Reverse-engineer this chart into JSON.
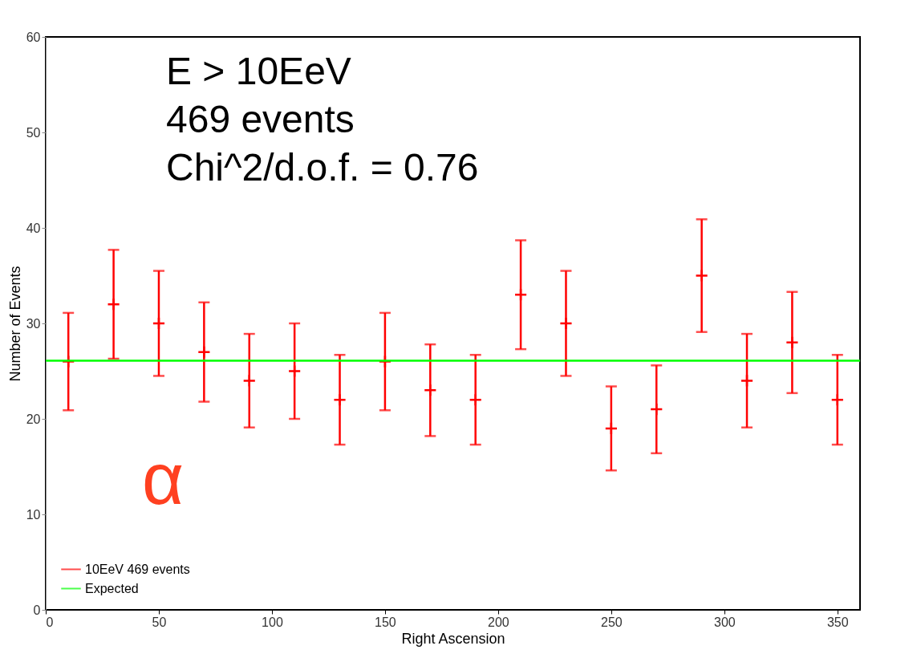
{
  "chart_data": {
    "type": "scatter",
    "xlabel": "Right Ascension",
    "ylabel": "Number of Events",
    "xlim": [
      0,
      360
    ],
    "xticks": [
      0,
      50,
      100,
      150,
      200,
      250,
      300,
      350
    ],
    "ylim": [
      0,
      60
    ],
    "yticks": [
      0,
      10,
      20,
      30,
      40,
      50,
      60
    ],
    "grid": false,
    "legend": "bottom left",
    "series": [
      {
        "name": "10EeV 469 events",
        "color": "#ff0000",
        "marker": "cross",
        "x": [
          10,
          30,
          50,
          70,
          90,
          110,
          130,
          150,
          170,
          190,
          210,
          230,
          250,
          270,
          290,
          310,
          330,
          350
        ],
        "values": [
          26,
          32,
          30,
          27,
          24,
          25,
          22,
          26,
          23,
          22,
          33,
          30,
          19,
          21,
          35,
          24,
          28,
          22
        ],
        "errors": [
          5.1,
          5.7,
          5.5,
          5.2,
          4.9,
          5.0,
          4.7,
          5.1,
          4.8,
          4.7,
          5.7,
          5.5,
          4.4,
          4.6,
          5.9,
          4.9,
          5.3,
          4.7
        ]
      },
      {
        "name": "Expected",
        "type": "line",
        "color": "#00ff00",
        "marker": "none",
        "x": [
          0,
          360
        ],
        "values": [
          26.1,
          26.1
        ]
      }
    ],
    "annotations": [
      "E > 10EeV",
      "469 events",
      "Chi^2/d.o.f. = 0.76",
      "α"
    ]
  }
}
